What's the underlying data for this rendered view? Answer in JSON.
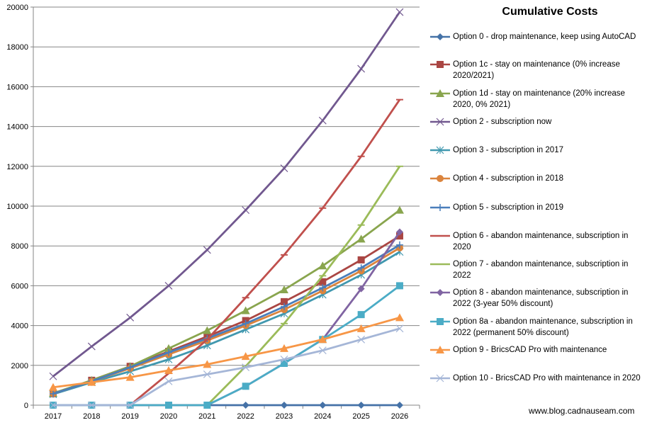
{
  "chart_data": {
    "type": "line",
    "title": "Cumulative Costs",
    "xlabel": "",
    "ylabel": "",
    "categories": [
      "2017",
      "2018",
      "2019",
      "2020",
      "2021",
      "2022",
      "2023",
      "2024",
      "2025",
      "2026"
    ],
    "ylim": [
      0,
      20000
    ],
    "yticks": [
      "0",
      "2000",
      "4000",
      "6000",
      "8000",
      "10000",
      "12000",
      "14000",
      "16000",
      "18000",
      "20000"
    ],
    "grid": true,
    "legend_position": "right",
    "series": [
      {
        "name": "Option 0 - drop maintenance, keep using AutoCAD",
        "color": "#4572A7",
        "marker": "diamond",
        "values": [
          0,
          0,
          0,
          0,
          0,
          0,
          0,
          0,
          0,
          0
        ]
      },
      {
        "name": "Option 1c - stay on maintenance (0% increase 2020/2021)",
        "color": "#AA4643",
        "marker": "square",
        "values": [
          575,
          1250,
          1950,
          2700,
          3450,
          4250,
          5200,
          6200,
          7300,
          8500
        ]
      },
      {
        "name": "Option 1d - stay on maintenance (20% increase 2020, 0% 2021)",
        "color": "#89A54E",
        "marker": "triangle",
        "values": [
          600,
          1250,
          1950,
          2850,
          3750,
          4750,
          5800,
          7000,
          8350,
          9800
        ]
      },
      {
        "name": "Option 2 - subscription now",
        "color": "#71588F",
        "marker": "x",
        "values": [
          1450,
          2950,
          4400,
          6000,
          7800,
          9800,
          11900,
          14300,
          16900,
          19750
        ]
      },
      {
        "name": "Option 3 - subscription in 2017",
        "color": "#4198AF",
        "marker": "star",
        "values": [
          550,
          1150,
          1700,
          2300,
          3000,
          3800,
          4600,
          5550,
          6550,
          7700
        ]
      },
      {
        "name": "Option 4 - subscription in 2018",
        "color": "#DB843D",
        "marker": "circle",
        "values": [
          575,
          1200,
          1850,
          2550,
          3250,
          4000,
          4800,
          5750,
          6750,
          7900
        ]
      },
      {
        "name": "Option 5 - subscription in 2019",
        "color": "#4A7EBB",
        "marker": "plus",
        "values": [
          575,
          1200,
          1900,
          2650,
          3350,
          4100,
          4950,
          5900,
          6900,
          8050
        ]
      },
      {
        "name": "Option 6 - abandon maintenance, subscription in 2020",
        "color": "#C0504D",
        "marker": "dash",
        "values": [
          0,
          0,
          0,
          1600,
          3300,
          5400,
          7550,
          9900,
          12500,
          15350
        ]
      },
      {
        "name": "Option 7 - abandon maintenance, subscription in 2022",
        "color": "#9BBB59",
        "marker": "dash",
        "values": [
          0,
          0,
          0,
          0,
          0,
          1950,
          4100,
          6500,
          9050,
          12000
        ]
      },
      {
        "name": "Option 8 - abandon maintenance, subscription in 2022 (3-year 50% discount)",
        "color": "#8064A2",
        "marker": "diamond",
        "values": [
          0,
          0,
          0,
          0,
          0,
          950,
          2100,
          3300,
          5850,
          8700
        ]
      },
      {
        "name": "Option 8a - abandon maintenance, subscription in 2022 (permanent 50% discount)",
        "color": "#4BACC6",
        "marker": "square",
        "values": [
          0,
          0,
          0,
          0,
          0,
          950,
          2100,
          3300,
          4550,
          6000
        ]
      },
      {
        "name": "Option 9 - BricsCAD Pro with maintenance",
        "color": "#F79646",
        "marker": "triangle",
        "values": [
          900,
          1150,
          1400,
          1750,
          2050,
          2450,
          2850,
          3300,
          3850,
          4400
        ]
      },
      {
        "name": "Option 10 - BricsCAD Pro with maintenance in 2020",
        "color": "#A5B6D7",
        "marker": "x",
        "values": [
          0,
          0,
          0,
          1200,
          1550,
          1900,
          2300,
          2750,
          3300,
          3850
        ]
      }
    ]
  },
  "credit": "www.blog.cadnauseam.com"
}
